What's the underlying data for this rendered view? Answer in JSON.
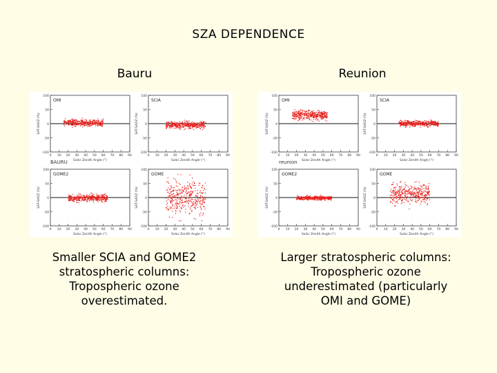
{
  "slide": {
    "title": "SZA DEPENDENCE"
  },
  "sites": [
    {
      "heading": "Bauru",
      "caption_lines": [
        "Smaller SCIA and GOME2",
        "stratospheric columns:",
        "Tropospheric ozone",
        "overestimated."
      ],
      "figure_label": "BAURU"
    },
    {
      "heading": "Reunion",
      "caption_lines": [
        "Larger stratospheric columns:",
        "Tropospheric ozone",
        "underestimated (particularly",
        "OMI and GOME)"
      ],
      "figure_label": "reunion"
    }
  ],
  "chart_data": [
    {
      "type": "scatter",
      "site": "Bauru",
      "figure_label": "BAURU",
      "xlabel": "Solar Zenith Angle (°)",
      "ylabel": "SAT-SAOZ (%)",
      "xlim": [
        0,
        90
      ],
      "ylim": [
        -100,
        100
      ],
      "xticks": [
        "0",
        "10",
        "20",
        "30",
        "40",
        "50",
        "60",
        "70",
        "80",
        "90"
      ],
      "yticks": [
        "100",
        "50",
        "0",
        "-50",
        "-100"
      ],
      "zero_line": true,
      "color": "#e8211d",
      "panels": [
        {
          "name": "OMI",
          "x_range": [
            15,
            60
          ],
          "y_center": 3,
          "y_spread": 9
        },
        {
          "name": "SCIA",
          "x_range": [
            20,
            65
          ],
          "y_center": -5,
          "y_spread": 9
        },
        {
          "name": "GOME2",
          "x_range": [
            20,
            65
          ],
          "y_center": -2,
          "y_spread": 9
        },
        {
          "name": "GOME",
          "x_range": [
            20,
            65
          ],
          "y_center": 0,
          "y_spread": 42
        }
      ]
    },
    {
      "type": "scatter",
      "site": "Reunion",
      "figure_label": "reunion",
      "xlabel": "Solar Zenith Angle (°)",
      "ylabel": "SAT-SAOZ (%)",
      "xlim": [
        0,
        90
      ],
      "ylim": [
        -100,
        100
      ],
      "xticks": [
        "0",
        "10",
        "20",
        "30",
        "40",
        "50",
        "60",
        "70",
        "80",
        "90"
      ],
      "yticks": [
        "100",
        "50",
        "0",
        "-50",
        "-100"
      ],
      "zero_line": true,
      "color": "#e8211d",
      "panels": [
        {
          "name": "OMI",
          "x_range": [
            15,
            55
          ],
          "y_center": 30,
          "y_spread": 12
        },
        {
          "name": "SCIA",
          "x_range": [
            25,
            70
          ],
          "y_center": 0,
          "y_spread": 7
        },
        {
          "name": "GOME2",
          "x_range": [
            20,
            60
          ],
          "y_center": -2,
          "y_spread": 5
        },
        {
          "name": "GOME",
          "x_range": [
            15,
            60
          ],
          "y_center": 15,
          "y_spread": 25
        }
      ]
    }
  ]
}
